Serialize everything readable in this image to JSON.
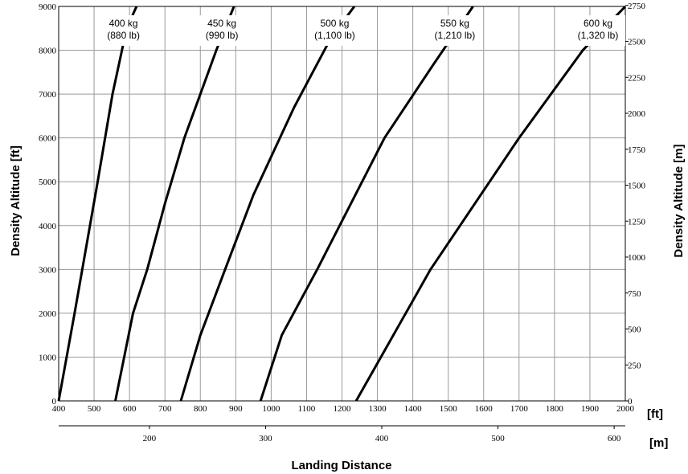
{
  "chart_data": {
    "type": "line",
    "title": "",
    "xlabel": "Landing Distance",
    "ylabel": "Density Altitude [ft]",
    "ylabel_right": "Density Altitude [m]",
    "x_unit_ft": "[ft]",
    "x_unit_m": "[m]",
    "xlim": [
      400,
      2000
    ],
    "ylim": [
      0,
      9000
    ],
    "x_ticks": [
      "400",
      "500",
      "600",
      "700",
      "800",
      "900",
      "1000",
      "1100",
      "1200",
      "1300",
      "1400",
      "1500",
      "1600",
      "1700",
      "1800",
      "1900",
      "2000"
    ],
    "y_ticks": [
      "0",
      "1000",
      "2000",
      "3000",
      "4000",
      "5000",
      "6000",
      "7000",
      "8000",
      "9000"
    ],
    "x_ticks_m": [
      "200",
      "300",
      "400",
      "500",
      "600"
    ],
    "y_ticks_m": [
      "0",
      "250",
      "500",
      "750",
      "1000",
      "1250",
      "1500",
      "1750",
      "2000",
      "2250",
      "2500",
      "2750"
    ],
    "grid": true,
    "series": [
      {
        "name": "400 kg (880 lb)",
        "label_line1": "400 kg",
        "label_line2": "(880 lb)",
        "x": [
          400,
          445,
          510,
          552,
          592,
          620
        ],
        "y": [
          0,
          2000,
          5000,
          7000,
          8500,
          9000
        ]
      },
      {
        "name": "450 kg (990 lb)",
        "label_line1": "450 kg",
        "label_line2": "(990 lb)",
        "x": [
          560,
          610,
          650,
          700,
          755,
          845,
          895
        ],
        "y": [
          0,
          2000,
          3000,
          4500,
          6000,
          8000,
          9000
        ]
      },
      {
        "name": "500 kg (1,100 lb)",
        "label_line1": "500 kg",
        "label_line2": "(1,100 lb)",
        "x": [
          745,
          800,
          870,
          950,
          1065,
          1170,
          1235
        ],
        "y": [
          0,
          1500,
          3000,
          4700,
          6700,
          8300,
          9000
        ]
      },
      {
        "name": "550 kg (1,210 lb)",
        "label_line1": "550 kg",
        "label_line2": "(1,210 lb)",
        "x": [
          970,
          1030,
          1130,
          1320,
          1460,
          1570
        ],
        "y": [
          0,
          1500,
          3000,
          6000,
          7700,
          9000
        ]
      },
      {
        "name": "600 kg (1,320 lb)",
        "label_line1": "600 kg",
        "label_line2": "(1,320 lb)",
        "x": [
          1240,
          1310,
          1450,
          1700,
          1880,
          2000
        ],
        "y": [
          0,
          1000,
          3000,
          6000,
          8000,
          9000
        ]
      }
    ]
  }
}
